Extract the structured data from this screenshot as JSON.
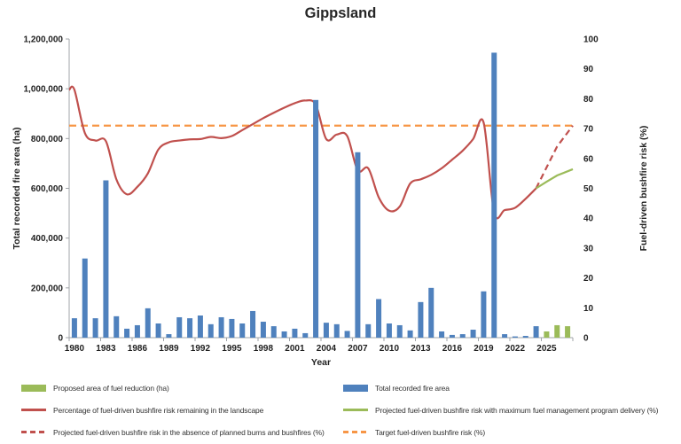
{
  "chart_data": {
    "type": "bar",
    "title": "Gippsland",
    "grid": false,
    "legend_position": "bottom",
    "years_range": [
      1980,
      2027
    ],
    "left_axis": {
      "title": "Total recorded fire area (ha)",
      "max": 1200000,
      "ticks": [
        "0",
        "200,000",
        "400,000",
        "600,000",
        "800,000",
        "1,000,000",
        "1,200,000"
      ]
    },
    "right_axis": {
      "title": "Fuel-driven bushfire risk (%)",
      "max": 100,
      "ticks": [
        "0",
        "10",
        "20",
        "30",
        "40",
        "50",
        "60",
        "70",
        "80",
        "90",
        "100"
      ]
    },
    "x_axis": {
      "title": "Year",
      "tick_years": [
        1980,
        1983,
        1986,
        1989,
        1992,
        1995,
        1998,
        2001,
        2004,
        2007,
        2010,
        2013,
        2016,
        2019,
        2022,
        2025
      ]
    },
    "series": {
      "fire": {
        "key": "fire",
        "type": "bar",
        "axis": "left",
        "color": "#4F81BD",
        "start_year": 1980,
        "values": [
          78000,
          318000,
          78000,
          632000,
          86000,
          36000,
          50000,
          118000,
          57000,
          14000,
          82000,
          78000,
          89000,
          54000,
          82000,
          75000,
          57000,
          107000,
          64000,
          46000,
          25000,
          36000,
          18000,
          955000,
          60000,
          54000,
          27000,
          745000,
          54000,
          155000,
          57000,
          50000,
          29000,
          143000,
          200000,
          25000,
          11000,
          14000,
          32000,
          186000,
          1145000,
          14000,
          5000,
          7000,
          46000
        ]
      },
      "proposed": {
        "key": "proposed",
        "type": "bar",
        "axis": "left",
        "color": "#9BBB59",
        "start_year": 2025,
        "values": [
          25000,
          50000,
          46000
        ]
      },
      "risk": {
        "key": "risk",
        "type": "line",
        "axis": "right",
        "color": "#C0504D",
        "start_year": 1980,
        "values": [
          83,
          68.5,
          66,
          65.8,
          53,
          48,
          50.5,
          55,
          63,
          65.4,
          66,
          66.4,
          66.5,
          67.2,
          66.8,
          67.5,
          69.5,
          71.5,
          73.5,
          75.3,
          77,
          78.5,
          79.4,
          78,
          66.5,
          68,
          67.5,
          56,
          56.7,
          47,
          42.5,
          43.9,
          51.6,
          53,
          54.5,
          56.7,
          59.6,
          62.6,
          66.5,
          72,
          42,
          42.7,
          43.5,
          46.5,
          50
        ]
      },
      "no_burns": {
        "key": "no_burns",
        "type": "line-dashed",
        "axis": "right",
        "color": "#C0504D",
        "start_year": 2024,
        "values": [
          50,
          57,
          64,
          71
        ]
      },
      "max_program": {
        "key": "max_program",
        "type": "line",
        "axis": "right",
        "color": "#9BBB59",
        "start_year": 2024,
        "values": [
          50,
          52.2,
          54.3,
          56.4
        ]
      },
      "target": {
        "key": "target",
        "type": "line-dashed-constant",
        "axis": "right",
        "color": "#F79646",
        "value": 71
      }
    },
    "legend": {
      "columns": [
        [
          {
            "swatch": "bar",
            "color": "#9BBB59",
            "label": "Proposed area of fuel reduction (ha)"
          },
          {
            "swatch": "line",
            "color": "#C0504D",
            "label": "Percentage of fuel-driven bushfire risk remaining in the landscape"
          },
          {
            "swatch": "dashed",
            "color": "#C0504D",
            "label": "Projected fuel-driven bushfire risk in the absence of planned burns and bushfires (%)"
          }
        ],
        [
          {
            "swatch": "bar",
            "color": "#4F81BD",
            "label": "Total recorded fire area"
          },
          {
            "swatch": "line",
            "color": "#9BBB59",
            "label": "Projected fuel-driven bushfire risk with maximum fuel management program delivery  (%)"
          },
          {
            "swatch": "dashed",
            "color": "#F79646",
            "label": "Target fuel-driven bushfire risk (%)"
          }
        ]
      ]
    }
  }
}
